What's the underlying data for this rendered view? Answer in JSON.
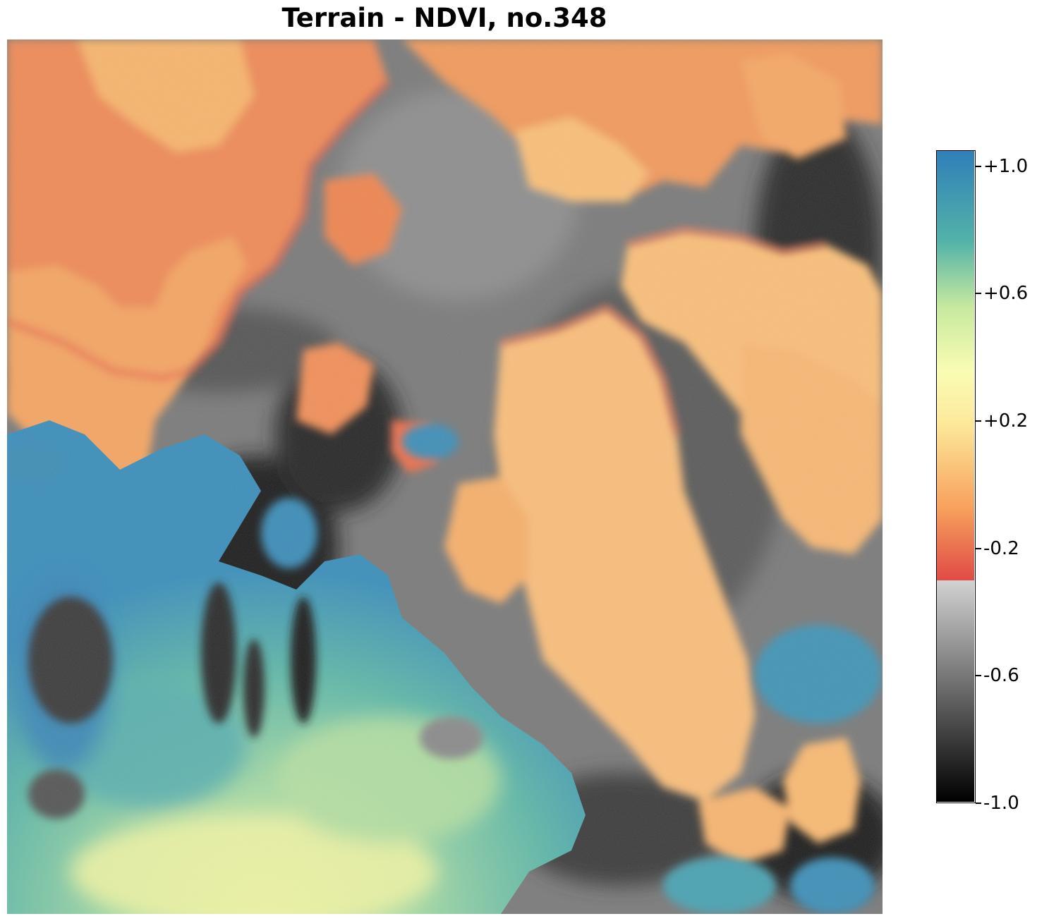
{
  "title": "Terrain - NDVI, no.348",
  "colorbar": {
    "ticks": [
      {
        "value": 1.0,
        "label": "+1.0"
      },
      {
        "value": 0.6,
        "label": "+0.6"
      },
      {
        "value": 0.2,
        "label": "+0.2"
      },
      {
        "value": -0.2,
        "label": "-0.2"
      },
      {
        "value": -0.6,
        "label": "-0.6"
      },
      {
        "value": -1.0,
        "label": "-1.0"
      }
    ],
    "range": [
      -1.0,
      1.05
    ],
    "gray_to_color_break": -0.3,
    "colors": {
      "gray_low": "#000000",
      "gray_high": "#d2d2d2",
      "red": "#e04a45",
      "orange": "#f7a05c",
      "yellow": "#fde89a",
      "light_yellow": "#fafcb4",
      "green": "#90d3a3",
      "teal": "#53b3a8",
      "blue": "#2f7fb9"
    }
  }
}
